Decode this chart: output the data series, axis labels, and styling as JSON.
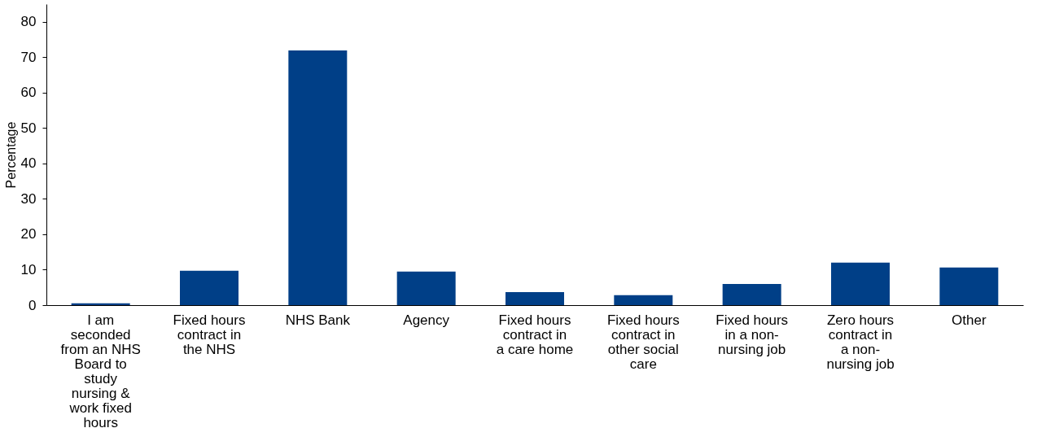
{
  "chart_data": {
    "type": "bar",
    "ylabel": "Percentage",
    "categories": [
      "I am seconded from an NHS Board to study nursing & work fixed hours",
      "Fixed hours contract in the NHS",
      "NHS Bank",
      "Agency",
      "Fixed hours contract in a care home",
      "Fixed hours contract in other social care",
      "Fixed hours in a non-nursing job",
      "Zero hours contract in a non-nursing job",
      "Other"
    ],
    "series": [
      {
        "color": "#003f87",
        "values": [
          0.5,
          9.7,
          71.9,
          9.5,
          3.7,
          2.8,
          6.0,
          12.0,
          10.6
        ]
      }
    ],
    "ylim": [
      0,
      85
    ],
    "yticks": [
      0,
      10,
      20,
      30,
      40,
      50,
      60,
      70,
      80
    ],
    "grid": false
  }
}
